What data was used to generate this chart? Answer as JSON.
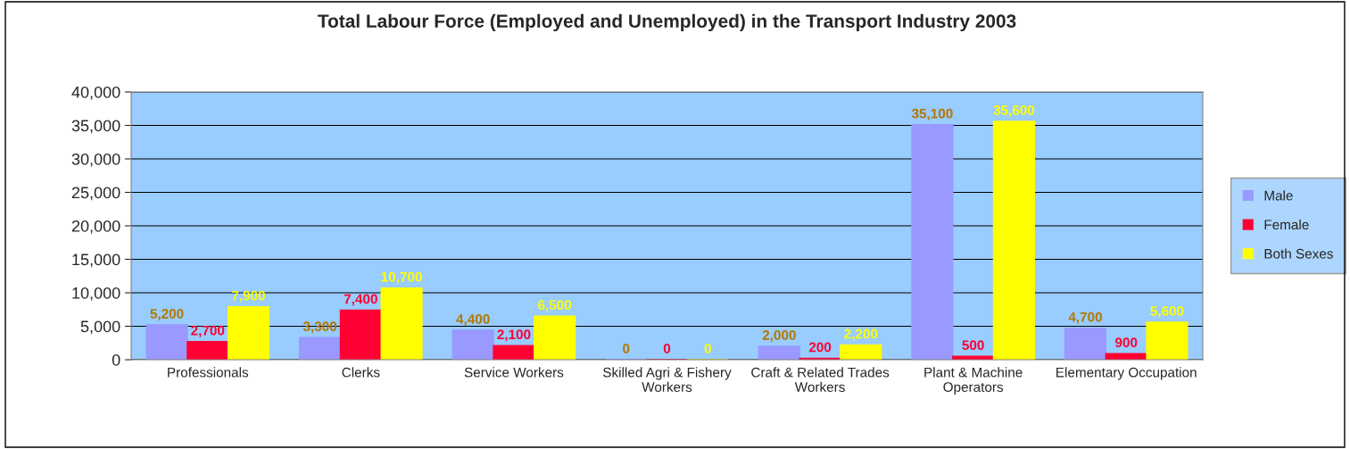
{
  "chart_data": {
    "type": "bar",
    "title": "Total Labour Force (Employed and Unemployed) in the Transport Industry 2003",
    "categories": [
      "Professionals",
      "Clerks",
      "Service Workers",
      "Skilled Agri & Fishery Workers",
      "Craft & Related Trades Workers",
      "Plant & Machine Operators",
      "Elementary Occupation"
    ],
    "series": [
      {
        "name": "Male",
        "color": "#9999ff",
        "values": [
          5200,
          3300,
          4400,
          0,
          2000,
          35100,
          4700
        ],
        "value_labels": [
          "5,200",
          "3,300",
          "4,400",
          "0",
          "2,000",
          "35,100",
          "4,700"
        ]
      },
      {
        "name": "Female",
        "color": "#ff0033",
        "values": [
          2700,
          7400,
          2100,
          0,
          200,
          500,
          900
        ],
        "value_labels": [
          "2,700",
          "7,400",
          "2,100",
          "0",
          "200",
          "500",
          "900"
        ]
      },
      {
        "name": "Both Sexes",
        "color": "#ffff00",
        "values": [
          7900,
          10700,
          6500,
          0,
          2200,
          35600,
          5600
        ],
        "value_labels": [
          "7,900",
          "10,700",
          "6,500",
          "0",
          "2,200",
          "35,600",
          "5,600"
        ]
      }
    ],
    "ylim": [
      0,
      40000
    ],
    "yticks": [
      {
        "value": 0,
        "label": "0"
      },
      {
        "value": 5000,
        "label": "5,000"
      },
      {
        "value": 10000,
        "label": "10,000"
      },
      {
        "value": 15000,
        "label": "15,000"
      },
      {
        "value": 20000,
        "label": "20,000"
      },
      {
        "value": 25000,
        "label": "25,000"
      },
      {
        "value": 30000,
        "label": "30,000"
      },
      {
        "value": 35000,
        "label": "35,000"
      },
      {
        "value": 40000,
        "label": "40,000"
      }
    ],
    "grid": "y",
    "legend": "right"
  }
}
